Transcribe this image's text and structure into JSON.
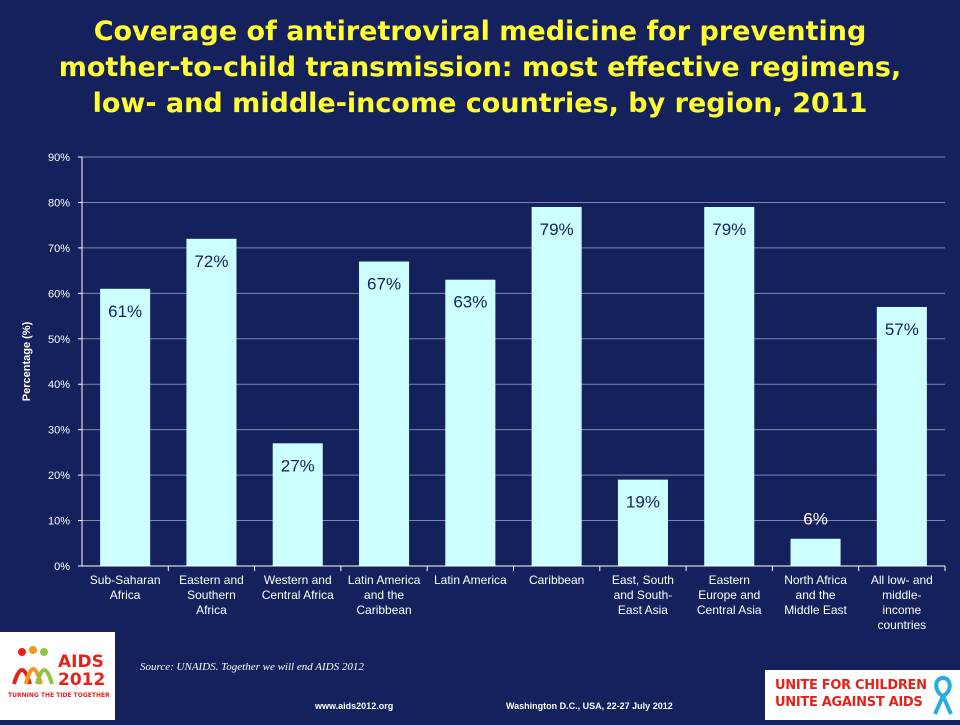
{
  "title_lines": [
    "Coverage of antiretroviral medicine for preventing",
    "mother-to-child  transmission: most effective regimens,",
    "low- and middle-income countries, by region, 2011"
  ],
  "source": "Source: UNAIDS. Together we will end AIDS 2012",
  "footer": {
    "url": "www.aids2012.org",
    "place": "Washington D.C., USA, 22-27 July 2012"
  },
  "logo_left": {
    "main": "AIDS",
    "year": "2012",
    "tagline": "TURNING THE TIDE TOGETHER"
  },
  "logo_right": {
    "line1": "UNITE FOR CHILDREN",
    "line2": "UNITE AGAINST AIDS"
  },
  "colors": {
    "background": "#14215c",
    "title": "#ffff33",
    "bar": "#ccffff",
    "logo_red": "#e2231a"
  },
  "chart_data": {
    "type": "bar",
    "ylabel": "Percentage (%)",
    "ylim": [
      0,
      90
    ],
    "yticks": [
      0,
      10,
      20,
      30,
      40,
      50,
      60,
      70,
      80,
      90
    ],
    "ytick_labels": [
      "0%",
      "10%",
      "20%",
      "30%",
      "40%",
      "50%",
      "60%",
      "70%",
      "80%",
      "90%"
    ],
    "grid": true,
    "categories": [
      [
        "Sub-Saharan",
        "Africa"
      ],
      [
        "Eastern and",
        "Southern",
        "Africa"
      ],
      [
        "Western and",
        "Central Africa"
      ],
      [
        "Latin America",
        "and the",
        "Caribbean"
      ],
      [
        "Latin America"
      ],
      [
        "Caribbean"
      ],
      [
        "East, South",
        "and South-",
        "East Asia"
      ],
      [
        "Eastern",
        "Europe and",
        "Central Asia"
      ],
      [
        "North Africa",
        "and the",
        "Middle East"
      ],
      [
        "All low- and",
        "middle-",
        "income",
        "countries"
      ]
    ],
    "values": [
      61,
      72,
      27,
      67,
      63,
      79,
      19,
      79,
      6,
      57
    ],
    "data_labels": [
      "61%",
      "72%",
      "27%",
      "67%",
      "63%",
      "79%",
      "19%",
      "79%",
      "6%",
      "57%"
    ]
  }
}
